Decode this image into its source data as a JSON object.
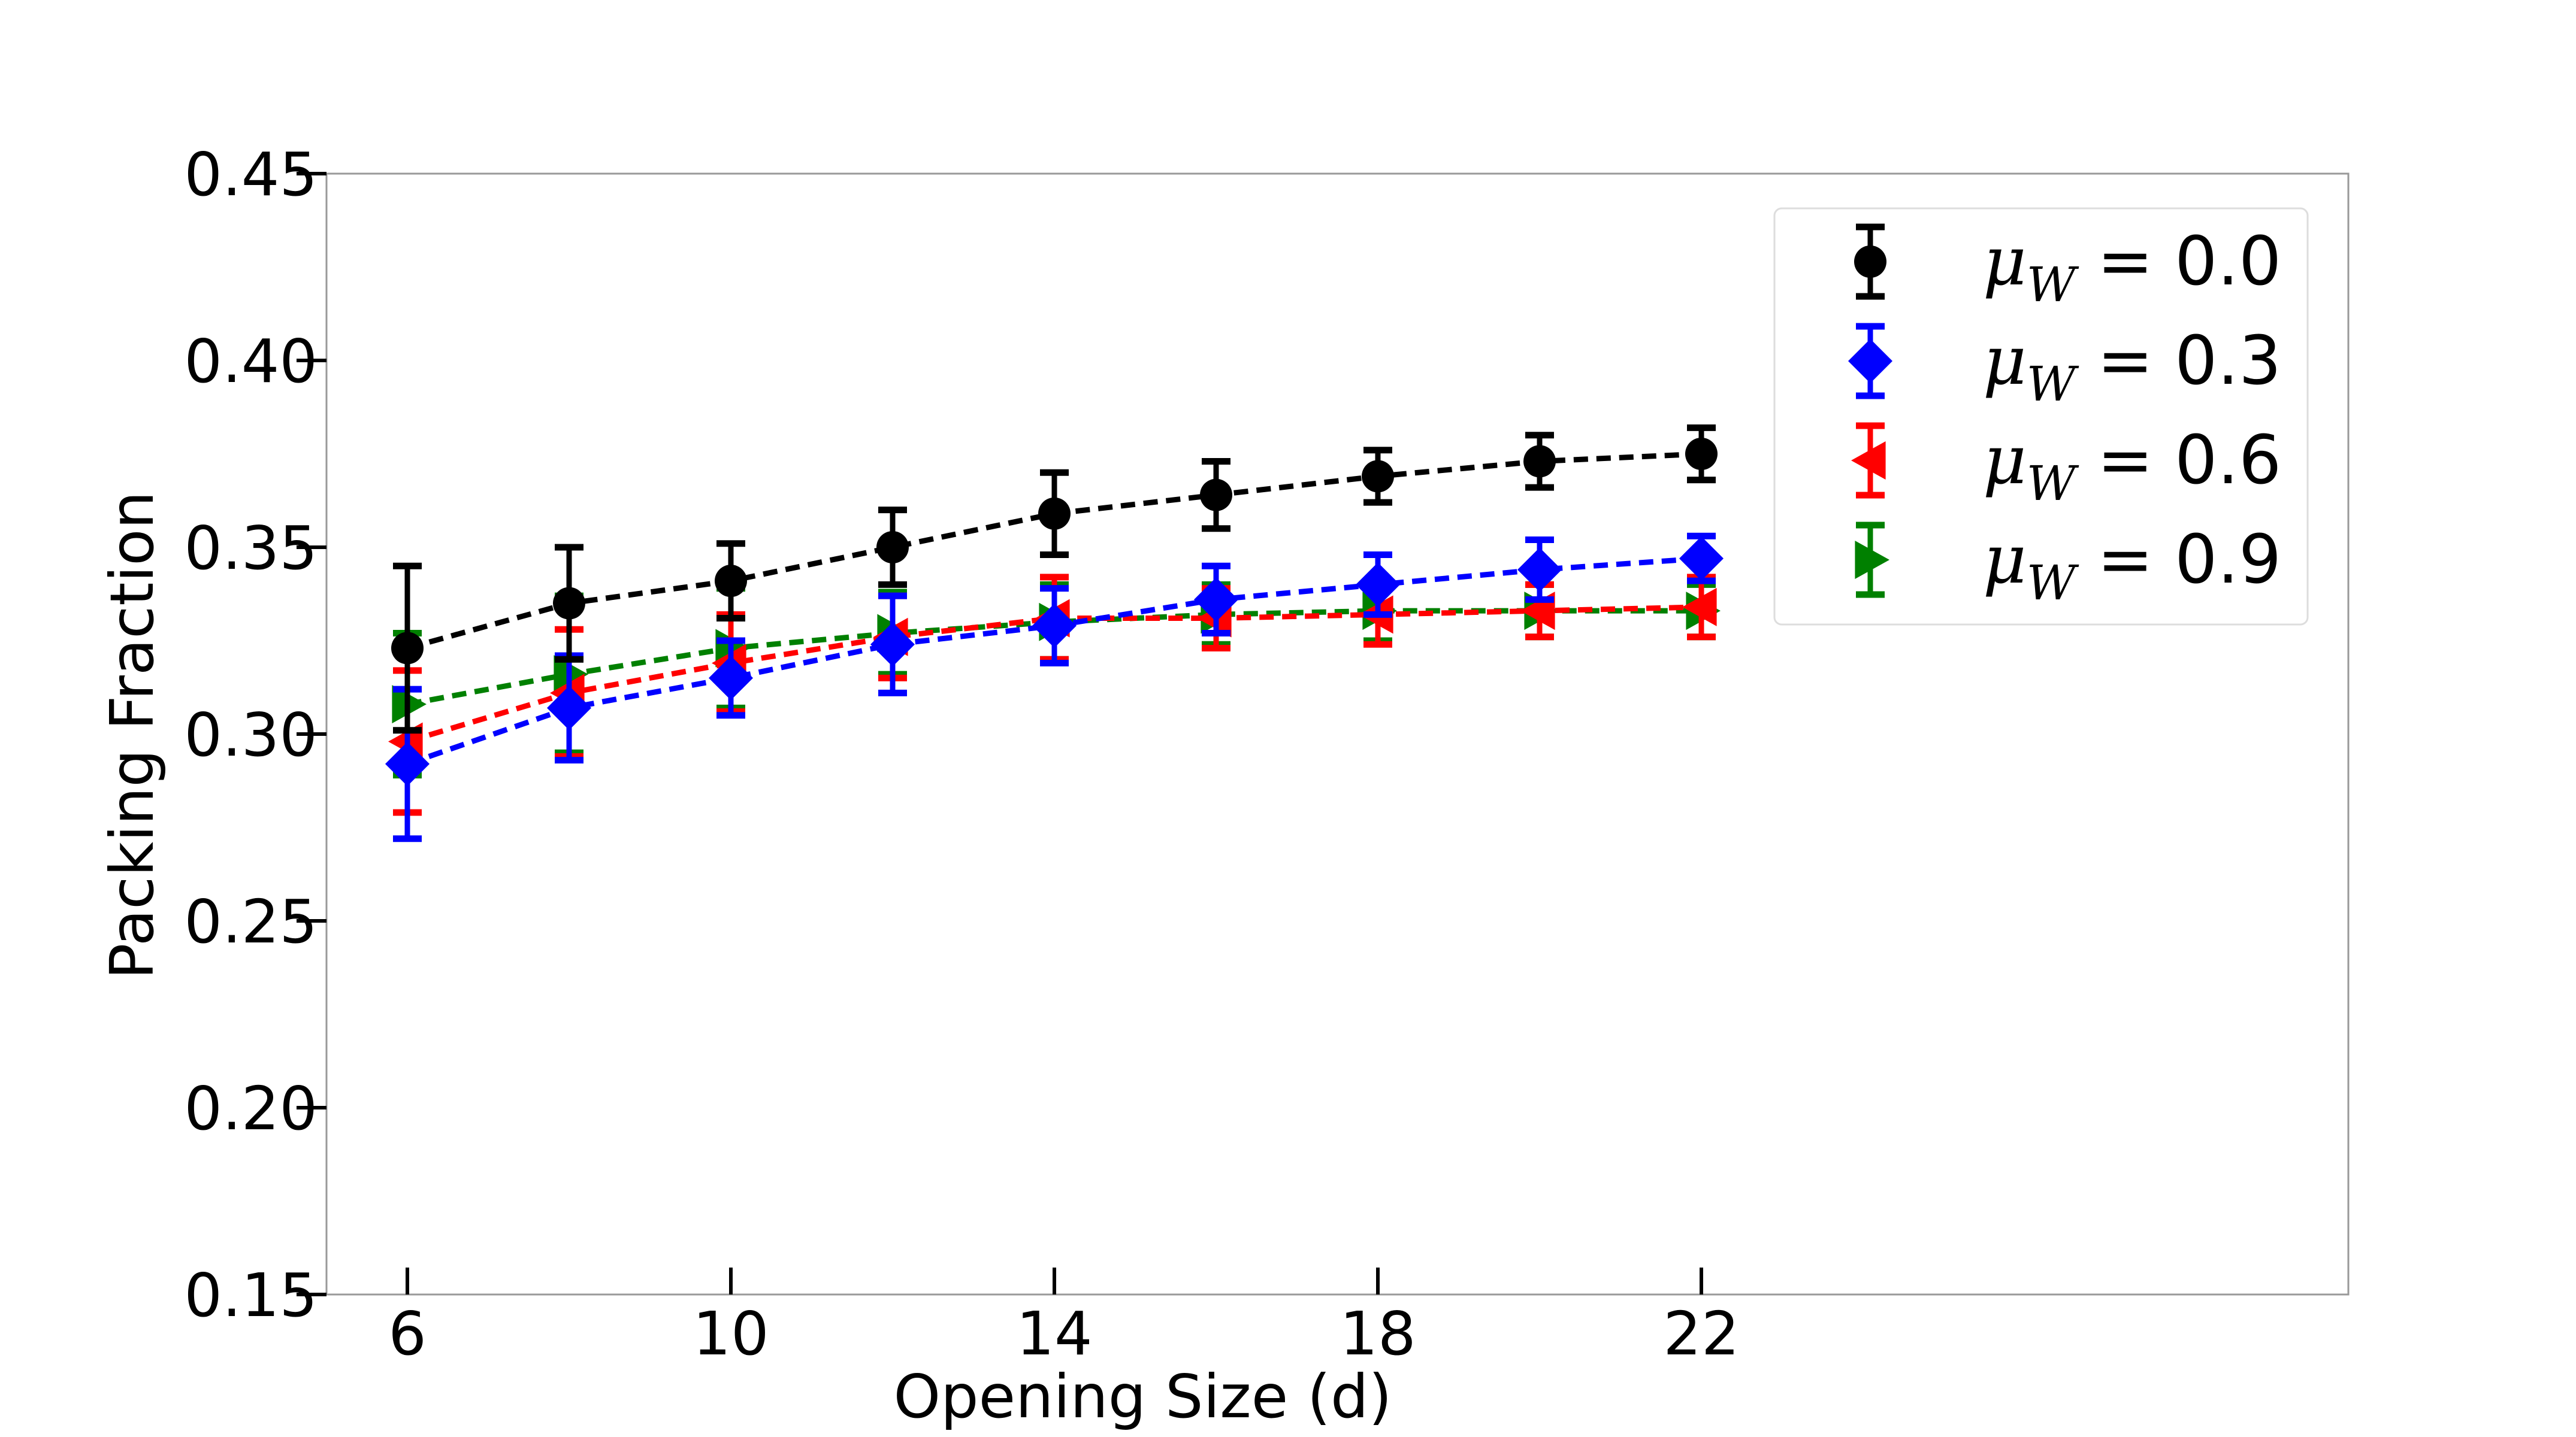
{
  "chart_data": {
    "type": "line",
    "title": "",
    "xlabel": "Opening Size (d)",
    "ylabel": "Packing Fraction",
    "xlim": [
      5,
      30
    ],
    "ylim": [
      0.15,
      0.45
    ],
    "x_ticks": [
      6,
      10,
      14,
      18,
      22
    ],
    "x_tick_labels": [
      "6",
      "10",
      "14",
      "18",
      "22"
    ],
    "y_ticks": [
      0.15,
      0.2,
      0.25,
      0.3,
      0.35,
      0.4,
      0.45
    ],
    "y_tick_labels": [
      "0.15",
      "0.20",
      "0.25",
      "0.30",
      "0.35",
      "0.40",
      "0.45"
    ],
    "grid": false,
    "legend_position": "top-right",
    "x": [
      6,
      8,
      10,
      12,
      14,
      16,
      18,
      20,
      22
    ],
    "series": [
      {
        "name": "μ_W = 0.0",
        "legend_symbol": "μ",
        "legend_sub": "W",
        "legend_value": " = 0.0",
        "color": "#000000",
        "marker": "circle",
        "values": [
          0.323,
          0.335,
          0.341,
          0.35,
          0.359,
          0.364,
          0.369,
          0.373,
          0.375
        ],
        "errors": [
          0.022,
          0.015,
          0.01,
          0.01,
          0.011,
          0.009,
          0.007,
          0.007,
          0.007
        ]
      },
      {
        "name": "μ_W = 0.3",
        "legend_symbol": "μ",
        "legend_sub": "W",
        "legend_value": " = 0.3",
        "color": "#0000ff",
        "marker": "diamond",
        "values": [
          0.292,
          0.307,
          0.315,
          0.324,
          0.329,
          0.336,
          0.34,
          0.344,
          0.347
        ],
        "errors": [
          0.02,
          0.014,
          0.01,
          0.013,
          0.01,
          0.009,
          0.008,
          0.008,
          0.006
        ]
      },
      {
        "name": "μ_W = 0.6",
        "legend_symbol": "μ",
        "legend_sub": "W",
        "legend_value": " = 0.6",
        "color": "#ff0000",
        "marker": "triangle-left",
        "values": [
          0.298,
          0.311,
          0.319,
          0.326,
          0.331,
          0.331,
          0.332,
          0.333,
          0.334
        ],
        "errors": [
          0.019,
          0.017,
          0.013,
          0.011,
          0.011,
          0.008,
          0.008,
          0.007,
          0.008
        ]
      },
      {
        "name": "μ_W = 0.9",
        "legend_symbol": "μ",
        "legend_sub": "W",
        "legend_value": " = 0.9",
        "color": "#008000",
        "marker": "triangle-right",
        "values": [
          0.308,
          0.316,
          0.323,
          0.327,
          0.33,
          0.332,
          0.333,
          0.333,
          0.333
        ],
        "errors": [
          0.019,
          0.021,
          0.016,
          0.011,
          0.01,
          0.008,
          0.008,
          0.007,
          0.007
        ]
      }
    ]
  }
}
